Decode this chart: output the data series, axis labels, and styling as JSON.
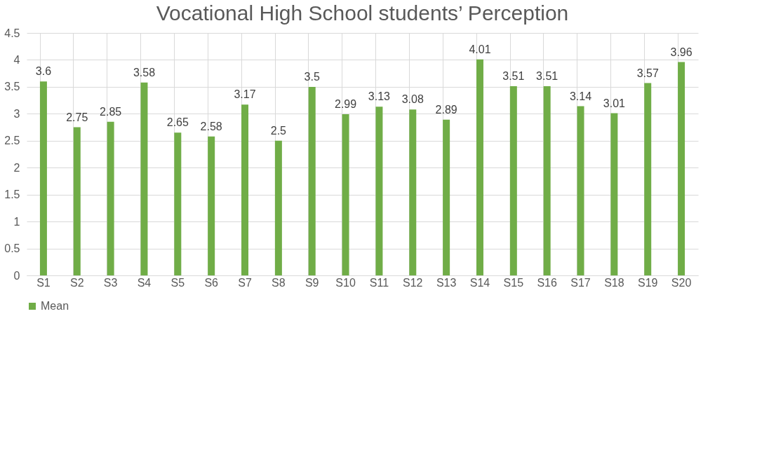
{
  "chart_data": {
    "type": "bar",
    "title": "Vocational High School students’ Perception",
    "categories": [
      "S1",
      "S2",
      "S3",
      "S4",
      "S5",
      "S6",
      "S7",
      "S8",
      "S9",
      "S10",
      "S11",
      "S12",
      "S13",
      "S14",
      "S15",
      "S16",
      "S17",
      "S18",
      "S19",
      "S20"
    ],
    "series": [
      {
        "name": "Mean",
        "color": "#70ad47",
        "values": [
          3.6,
          2.75,
          2.85,
          3.58,
          2.65,
          2.58,
          3.17,
          2.5,
          3.5,
          2.99,
          3.13,
          3.08,
          2.89,
          4.01,
          3.51,
          3.51,
          3.14,
          3.01,
          3.57,
          3.96
        ]
      }
    ],
    "ylim": [
      0,
      4.5
    ],
    "yticks": [
      0,
      0.5,
      1,
      1.5,
      2,
      2.5,
      3,
      3.5,
      4,
      4.5
    ],
    "grid": true,
    "legend": "bottom",
    "data_labels": true
  }
}
